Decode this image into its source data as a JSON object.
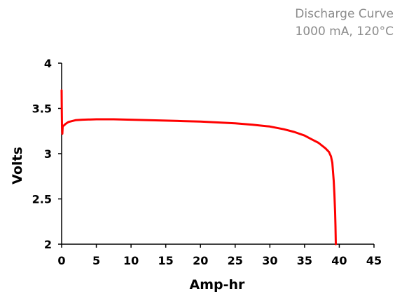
{
  "header": {
    "title": "Discharge Curve",
    "subtitle": "1000 mA, 120°C"
  },
  "colors": {
    "series": "#ff0000",
    "axis": "#000000",
    "title_text": "#8c8c8c"
  },
  "chart_data": {
    "type": "line",
    "title": "Discharge Curve",
    "subtitle": "1000 mA, 120°C",
    "xlabel": "Amp-hr",
    "ylabel": "Volts",
    "xlim": [
      0,
      45
    ],
    "ylim": [
      2,
      4
    ],
    "xticks": [
      0,
      5,
      10,
      15,
      20,
      25,
      30,
      35,
      40,
      45
    ],
    "yticks": [
      2,
      2.5,
      3,
      3.5,
      4
    ],
    "ytick_labels": [
      "2",
      "2.5",
      "3",
      "3.5",
      "4"
    ],
    "grid": false,
    "legend": "none",
    "series": [
      {
        "color": "#ff0000",
        "x": [
          0,
          0.02,
          0.05,
          0.1,
          0.15,
          0.3,
          0.6,
          1,
          2,
          3,
          5,
          7.5,
          10,
          12.5,
          15,
          17.5,
          20,
          22.5,
          25,
          27.5,
          30,
          32,
          33.5,
          35,
          36,
          37,
          38,
          38.5,
          38.8,
          39,
          39.1,
          39.2,
          39.3,
          39.4,
          39.45,
          39.5
        ],
        "y": [
          3.7,
          3.5,
          3.3,
          3.22,
          3.3,
          3.31,
          3.33,
          3.35,
          3.37,
          3.375,
          3.38,
          3.38,
          3.375,
          3.37,
          3.365,
          3.36,
          3.355,
          3.345,
          3.335,
          3.32,
          3.3,
          3.27,
          3.24,
          3.2,
          3.16,
          3.12,
          3.06,
          3.02,
          2.97,
          2.9,
          2.8,
          2.7,
          2.55,
          2.35,
          2.2,
          2.0
        ]
      }
    ]
  }
}
